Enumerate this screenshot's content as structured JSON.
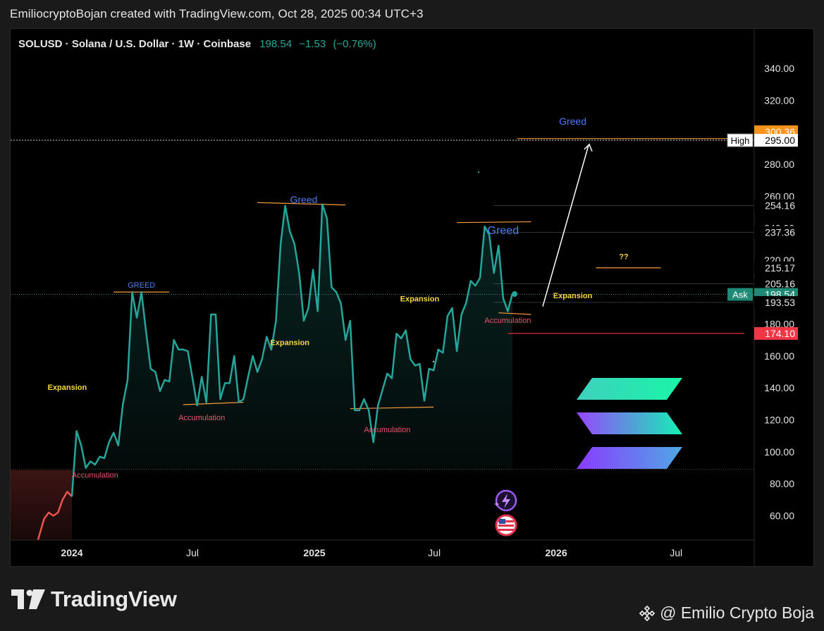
{
  "header": {
    "attribution": "EmiliocryptoBojan created with TradingView.com, Oct 28, 2025 00:34 UTC+3"
  },
  "legend": {
    "symbol": "SOLUSD · Solana / U.S. Dollar · 1W · Coinbase",
    "last": "198.54",
    "change": "−1.53",
    "change_pct": "(−0.76%)"
  },
  "brand": {
    "name": "TradingView"
  },
  "watermark": {
    "text": "@ Emilio Crypto Boja"
  },
  "colors": {
    "line": "#26a69a",
    "pre_line": "#ef5350",
    "annotation_yellow": "#f5d742",
    "annotation_red": "#f0546e",
    "annotation_blue": "#4f7cf0",
    "resistance_line": "#f39c3c",
    "high_badge": "#f7931a",
    "ask_badge": "#1f8a76",
    "support_badge": "#f23645"
  },
  "chart_data": {
    "type": "line",
    "y_axis": {
      "ticks": [
        "340.00",
        "320.00",
        "300.00",
        "280.00",
        "260.00",
        "240.00",
        "220.00",
        "200.00",
        "180.00",
        "160.00",
        "140.00",
        "120.00",
        "100.00",
        "80.00",
        "60.00"
      ]
    },
    "x_axis": {
      "ticks": [
        {
          "label": "2024",
          "x": "2024-01-01",
          "bold": true
        },
        {
          "label": "Jul",
          "x": "2024-07-01",
          "bold": false
        },
        {
          "label": "2025",
          "x": "2025-01-01",
          "bold": true
        },
        {
          "label": "Jul",
          "x": "2025-07-01",
          "bold": false
        },
        {
          "label": "2026",
          "x": "2026-01-01",
          "bold": true
        },
        {
          "label": "Jul",
          "x": "2026-07-01",
          "bold": false
        }
      ]
    },
    "series": [
      {
        "values": [
          {
            "x": "2023-10-02",
            "y": 24
          },
          {
            "x": "2023-10-23",
            "y": 33
          },
          {
            "x": "2023-11-06",
            "y": 38
          },
          {
            "x": "2023-11-20",
            "y": 58
          },
          {
            "x": "2023-11-27",
            "y": 62
          },
          {
            "x": "2023-12-04",
            "y": 60
          },
          {
            "x": "2023-12-11",
            "y": 62
          },
          {
            "x": "2023-12-18",
            "y": 70
          },
          {
            "x": "2023-12-25",
            "y": 75
          },
          {
            "x": "2024-01-01",
            "y": 72
          }
        ]
      },
      {
        "values": [
          {
            "x": "2024-01-01",
            "y": 72
          },
          {
            "x": "2024-01-08",
            "y": 113
          },
          {
            "x": "2024-01-15",
            "y": 104
          },
          {
            "x": "2024-01-22",
            "y": 90
          },
          {
            "x": "2024-01-29",
            "y": 94
          },
          {
            "x": "2024-02-05",
            "y": 92
          },
          {
            "x": "2024-02-12",
            "y": 97
          },
          {
            "x": "2024-02-19",
            "y": 96
          },
          {
            "x": "2024-02-26",
            "y": 106
          },
          {
            "x": "2024-03-04",
            "y": 112
          },
          {
            "x": "2024-03-11",
            "y": 104
          },
          {
            "x": "2024-03-18",
            "y": 130
          },
          {
            "x": "2024-03-25",
            "y": 145
          },
          {
            "x": "2024-04-01",
            "y": 200
          },
          {
            "x": "2024-04-08",
            "y": 184
          },
          {
            "x": "2024-04-15",
            "y": 200
          },
          {
            "x": "2024-04-22",
            "y": 175
          },
          {
            "x": "2024-04-29",
            "y": 152
          },
          {
            "x": "2024-05-06",
            "y": 150
          },
          {
            "x": "2024-05-13",
            "y": 138
          },
          {
            "x": "2024-05-20",
            "y": 145
          },
          {
            "x": "2024-05-27",
            "y": 144
          },
          {
            "x": "2024-06-03",
            "y": 170
          },
          {
            "x": "2024-06-10",
            "y": 164
          },
          {
            "x": "2024-06-17",
            "y": 164
          },
          {
            "x": "2024-06-24",
            "y": 163
          },
          {
            "x": "2024-07-01",
            "y": 146
          },
          {
            "x": "2024-07-08",
            "y": 129
          },
          {
            "x": "2024-07-15",
            "y": 147
          },
          {
            "x": "2024-07-22",
            "y": 131
          },
          {
            "x": "2024-07-29",
            "y": 186
          },
          {
            "x": "2024-08-05",
            "y": 186
          },
          {
            "x": "2024-08-12",
            "y": 133
          },
          {
            "x": "2024-08-19",
            "y": 143
          },
          {
            "x": "2024-08-26",
            "y": 143
          },
          {
            "x": "2024-09-02",
            "y": 160
          },
          {
            "x": "2024-09-09",
            "y": 131
          },
          {
            "x": "2024-09-16",
            "y": 133
          },
          {
            "x": "2024-09-23",
            "y": 147
          },
          {
            "x": "2024-09-30",
            "y": 160
          },
          {
            "x": "2024-10-07",
            "y": 150
          },
          {
            "x": "2024-10-14",
            "y": 158
          },
          {
            "x": "2024-10-21",
            "y": 172
          },
          {
            "x": "2024-10-28",
            "y": 164
          },
          {
            "x": "2024-11-04",
            "y": 182
          },
          {
            "x": "2024-11-11",
            "y": 230
          },
          {
            "x": "2024-11-18",
            "y": 254
          },
          {
            "x": "2024-11-25",
            "y": 238
          },
          {
            "x": "2024-12-02",
            "y": 230
          },
          {
            "x": "2024-12-09",
            "y": 212
          },
          {
            "x": "2024-12-16",
            "y": 182
          },
          {
            "x": "2024-12-23",
            "y": 190
          },
          {
            "x": "2024-12-30",
            "y": 214
          },
          {
            "x": "2025-01-06",
            "y": 188
          },
          {
            "x": "2025-01-13",
            "y": 255
          },
          {
            "x": "2025-01-20",
            "y": 246
          },
          {
            "x": "2025-01-27",
            "y": 203
          },
          {
            "x": "2025-02-03",
            "y": 200
          },
          {
            "x": "2025-02-10",
            "y": 193
          },
          {
            "x": "2025-02-17",
            "y": 170
          },
          {
            "x": "2025-02-24",
            "y": 182
          },
          {
            "x": "2025-03-03",
            "y": 126
          },
          {
            "x": "2025-03-10",
            "y": 126
          },
          {
            "x": "2025-03-17",
            "y": 133
          },
          {
            "x": "2025-03-24",
            "y": 126
          },
          {
            "x": "2025-03-31",
            "y": 106
          },
          {
            "x": "2025-04-07",
            "y": 129
          },
          {
            "x": "2025-04-14",
            "y": 139
          },
          {
            "x": "2025-04-21",
            "y": 149
          },
          {
            "x": "2025-04-28",
            "y": 146
          },
          {
            "x": "2025-05-05",
            "y": 174
          },
          {
            "x": "2025-05-12",
            "y": 171
          },
          {
            "x": "2025-05-19",
            "y": 176
          },
          {
            "x": "2025-05-26",
            "y": 158
          },
          {
            "x": "2025-06-02",
            "y": 154
          },
          {
            "x": "2025-06-09",
            "y": 155
          },
          {
            "x": "2025-06-16",
            "y": 132
          },
          {
            "x": "2025-06-23",
            "y": 152
          },
          {
            "x": "2025-06-30",
            "y": 151
          },
          {
            "x": "2025-07-07",
            "y": 164
          },
          {
            "x": "2025-07-14",
            "y": 162
          },
          {
            "x": "2025-07-21",
            "y": 185
          },
          {
            "x": "2025-07-28",
            "y": 190
          },
          {
            "x": "2025-08-04",
            "y": 163
          },
          {
            "x": "2025-08-11",
            "y": 186
          },
          {
            "x": "2025-08-18",
            "y": 193
          },
          {
            "x": "2025-08-25",
            "y": 207
          },
          {
            "x": "2025-09-01",
            "y": 204
          },
          {
            "x": "2025-09-08",
            "y": 209
          },
          {
            "x": "2025-09-15",
            "y": 241
          },
          {
            "x": "2025-09-22",
            "y": 236
          },
          {
            "x": "2025-09-29",
            "y": 212
          },
          {
            "x": "2025-10-06",
            "y": 229
          },
          {
            "x": "2025-10-13",
            "y": 196
          },
          {
            "x": "2025-10-20",
            "y": 188
          },
          {
            "x": "2025-10-27",
            "y": 199
          }
        ]
      }
    ],
    "price_labels": [
      {
        "text": "300.36",
        "y": 300.36,
        "kind": "orange"
      },
      {
        "text": "295.00",
        "y": 295.0,
        "kind": "white",
        "side_label": "High"
      },
      {
        "text": "254.16",
        "y": 254.16,
        "kind": "dark"
      },
      {
        "text": "237.36",
        "y": 237.36,
        "kind": "dark"
      },
      {
        "text": "215.17",
        "y": 215.17,
        "kind": "dark"
      },
      {
        "text": "205.16",
        "y": 205.16,
        "kind": "dark"
      },
      {
        "text": "198.54",
        "y": 198.54,
        "kind": "green",
        "side_label": "Ask"
      },
      {
        "text": "193.53",
        "y": 193.53,
        "kind": "dark"
      },
      {
        "text": "174.10",
        "y": 174.1,
        "kind": "red"
      }
    ],
    "annotations": [
      {
        "text": "GREED",
        "x": "2024-04-15",
        "y": 204.5,
        "color": "blue",
        "size": "small"
      },
      {
        "text": "Greed",
        "x": "2024-12-16",
        "y": 257.5,
        "color": "blue",
        "size": "medium"
      },
      {
        "text": "Greed",
        "x": "2025-10-13",
        "y": 238,
        "color": "blue",
        "size": "large"
      },
      {
        "text": "Greed",
        "x": "2026-01-26",
        "y": 306.5,
        "color": "blue",
        "size": "medium"
      },
      {
        "text": "Expansion",
        "x": "2023-12-25",
        "y": 140.5,
        "color": "yellow"
      },
      {
        "text": "Expansion",
        "x": "2024-11-25",
        "y": 168.5,
        "color": "yellow"
      },
      {
        "text": "Expansion",
        "x": "2025-06-09",
        "y": 196,
        "color": "yellow"
      },
      {
        "text": "Expansion",
        "x": "2026-01-26",
        "y": 198,
        "color": "yellow"
      },
      {
        "text": "Accumulation",
        "x": "2024-07-15",
        "y": 121.5,
        "color": "red"
      },
      {
        "text": "Accumulation",
        "x": "2025-04-21",
        "y": 114,
        "color": "red"
      },
      {
        "text": "Accumulation",
        "x": "2025-10-20",
        "y": 182.5,
        "color": "red"
      },
      {
        "text": "Accumulation",
        "x": "2024-02-05",
        "y": 85.5,
        "color": "red"
      },
      {
        "text": "??",
        "x": "2026-04-13",
        "y": 222.5,
        "color": "yellow"
      }
    ],
    "segments": [
      {
        "x1": "2024-03-04",
        "y1": 200,
        "x2": "2024-05-27",
        "y2": 200,
        "color": "orange"
      },
      {
        "x1": "2024-10-07",
        "y1": 256,
        "x2": "2025-02-17",
        "y2": 254.5,
        "color": "orange"
      },
      {
        "x1": "2024-06-17",
        "y1": 129.5,
        "x2": "2024-09-16",
        "y2": 131,
        "color": "orange"
      },
      {
        "x1": "2025-02-24",
        "y1": 127,
        "x2": "2025-06-30",
        "y2": 128,
        "color": "orange"
      },
      {
        "x1": "2025-08-04",
        "y1": 243.5,
        "x2": "2025-11-24",
        "y2": 244,
        "color": "orange"
      },
      {
        "x1": "2025-10-06",
        "y1": 187,
        "x2": "2025-11-24",
        "y2": 186,
        "color": "orange"
      },
      {
        "x1": "2025-11-03",
        "y1": 296,
        "x2": "2026-10-12",
        "y2": 296,
        "color": "orange"
      },
      {
        "x1": "2026-03-02",
        "y1": 215.17,
        "x2": "2026-06-08",
        "y2": 215.17,
        "color": "orange"
      },
      {
        "x1": "2025-10-20",
        "y1": 174.1,
        "x2": "2026-10-12",
        "y2": 174.1,
        "color": "red"
      }
    ]
  }
}
